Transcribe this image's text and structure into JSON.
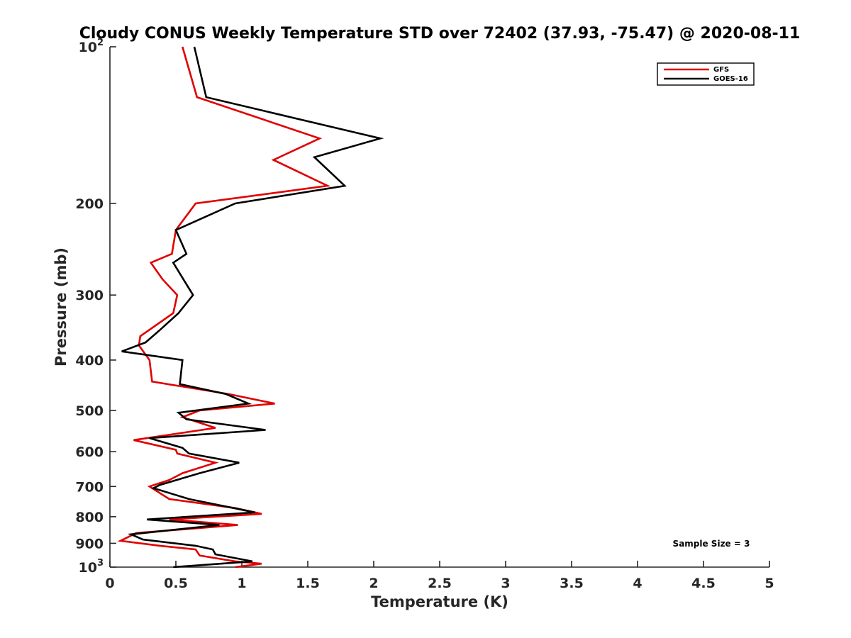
{
  "chart_data": {
    "type": "line",
    "title": "Cloudy CONUS Weekly Temperature STD over 72402 (37.93, -75.47) @ 2020-08-11",
    "xlabel": "Temperature (K)",
    "ylabel": "Pressure (mb)",
    "xlim": [
      0,
      5
    ],
    "ylim": [
      100,
      1000
    ],
    "yscale": "log",
    "y_reversed": true,
    "grid": false,
    "legend_position": "top-right",
    "x_ticks": [
      {
        "value": 0,
        "label": "0"
      },
      {
        "value": 0.5,
        "label": "0.5"
      },
      {
        "value": 1,
        "label": "1"
      },
      {
        "value": 1.5,
        "label": "1.5"
      },
      {
        "value": 2,
        "label": "2"
      },
      {
        "value": 2.5,
        "label": "2.5"
      },
      {
        "value": 3,
        "label": "3"
      },
      {
        "value": 3.5,
        "label": "3.5"
      },
      {
        "value": 4,
        "label": "4"
      },
      {
        "value": 4.5,
        "label": "4.5"
      },
      {
        "value": 5,
        "label": "5"
      }
    ],
    "y_ticks": [
      {
        "value": 100,
        "label": "10",
        "sup": "2"
      },
      {
        "value": 200,
        "label": "200",
        "sup": ""
      },
      {
        "value": 300,
        "label": "300",
        "sup": ""
      },
      {
        "value": 400,
        "label": "400",
        "sup": ""
      },
      {
        "value": 500,
        "label": "500",
        "sup": ""
      },
      {
        "value": 600,
        "label": "600",
        "sup": ""
      },
      {
        "value": 700,
        "label": "700",
        "sup": ""
      },
      {
        "value": 800,
        "label": "800",
        "sup": ""
      },
      {
        "value": 900,
        "label": "900",
        "sup": ""
      },
      {
        "value": 1000,
        "label": "10",
        "sup": "3"
      }
    ],
    "annotation": "Sample Size = 3",
    "series": [
      {
        "name": "GFS",
        "color": "#e00000",
        "points": [
          [
            0.55,
            100
          ],
          [
            0.66,
            125
          ],
          [
            1.59,
            150
          ],
          [
            1.24,
            165
          ],
          [
            1.65,
            185
          ],
          [
            0.65,
            200
          ],
          [
            0.5,
            225
          ],
          [
            0.47,
            250
          ],
          [
            0.31,
            260
          ],
          [
            0.4,
            280
          ],
          [
            0.51,
            300
          ],
          [
            0.48,
            325
          ],
          [
            0.23,
            360
          ],
          [
            0.22,
            375
          ],
          [
            0.3,
            400
          ],
          [
            0.31,
            420
          ],
          [
            0.32,
            440
          ],
          [
            0.9,
            465
          ],
          [
            1.25,
            485
          ],
          [
            0.68,
            500
          ],
          [
            0.55,
            515
          ],
          [
            0.8,
            540
          ],
          [
            0.18,
            570
          ],
          [
            0.5,
            595
          ],
          [
            0.51,
            605
          ],
          [
            0.8,
            630
          ],
          [
            0.55,
            660
          ],
          [
            0.45,
            680
          ],
          [
            0.3,
            700
          ],
          [
            0.45,
            740
          ],
          [
            0.95,
            770
          ],
          [
            1.15,
            790
          ],
          [
            0.45,
            810
          ],
          [
            0.97,
            830
          ],
          [
            0.2,
            860
          ],
          [
            0.08,
            890
          ],
          [
            0.38,
            910
          ],
          [
            0.65,
            925
          ],
          [
            0.68,
            950
          ],
          [
            0.95,
            975
          ],
          [
            1.15,
            985
          ],
          [
            0.95,
            1000
          ]
        ]
      },
      {
        "name": "GOES-16",
        "color": "#000000",
        "points": [
          [
            0.64,
            100
          ],
          [
            0.73,
            125
          ],
          [
            2.05,
            150
          ],
          [
            1.55,
            163
          ],
          [
            1.78,
            185
          ],
          [
            0.95,
            200
          ],
          [
            0.5,
            225
          ],
          [
            0.58,
            250
          ],
          [
            0.48,
            260
          ],
          [
            0.63,
            300
          ],
          [
            0.52,
            325
          ],
          [
            0.38,
            350
          ],
          [
            0.27,
            370
          ],
          [
            0.09,
            385
          ],
          [
            0.55,
            400
          ],
          [
            0.53,
            445
          ],
          [
            0.88,
            465
          ],
          [
            1.05,
            485
          ],
          [
            0.52,
            505
          ],
          [
            0.58,
            520
          ],
          [
            1.18,
            545
          ],
          [
            0.3,
            565
          ],
          [
            0.55,
            590
          ],
          [
            0.6,
            605
          ],
          [
            0.98,
            630
          ],
          [
            0.68,
            660
          ],
          [
            0.38,
            695
          ],
          [
            0.33,
            705
          ],
          [
            0.6,
            740
          ],
          [
            1.1,
            785
          ],
          [
            0.28,
            810
          ],
          [
            0.83,
            830
          ],
          [
            0.16,
            865
          ],
          [
            0.25,
            885
          ],
          [
            0.65,
            910
          ],
          [
            0.78,
            925
          ],
          [
            0.8,
            945
          ],
          [
            1.08,
            975
          ],
          [
            0.48,
            1000
          ]
        ]
      }
    ]
  }
}
